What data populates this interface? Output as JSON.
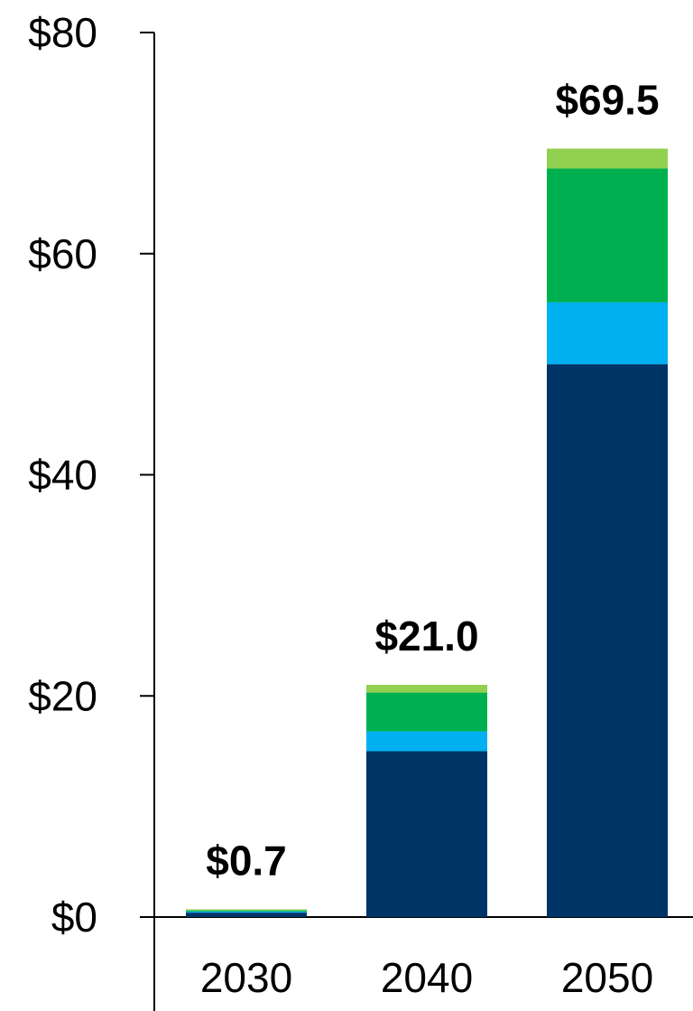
{
  "chart_data": {
    "type": "bar",
    "stacked": true,
    "categories": [
      "2030",
      "2040",
      "2050"
    ],
    "series": [
      {
        "color": "#003366",
        "values": [
          0.4,
          15.0,
          50.0
        ]
      },
      {
        "color": "#00B0F0",
        "values": [
          0.1,
          1.8,
          5.6
        ]
      },
      {
        "color": "#00B050",
        "values": [
          0.1,
          3.5,
          12.1
        ]
      },
      {
        "color": "#92D050",
        "values": [
          0.1,
          0.7,
          1.8
        ]
      }
    ],
    "totals": [
      "$0.7",
      "$21.0",
      "$69.5"
    ],
    "y_ticks": [
      {
        "value": 0,
        "label": "$0"
      },
      {
        "value": 20,
        "label": "$20"
      },
      {
        "value": 40,
        "label": "$40"
      },
      {
        "value": 60,
        "label": "$60"
      },
      {
        "value": 80,
        "label": "$80"
      }
    ],
    "ylim": [
      0,
      80
    ],
    "grid": false,
    "legend": false
  }
}
